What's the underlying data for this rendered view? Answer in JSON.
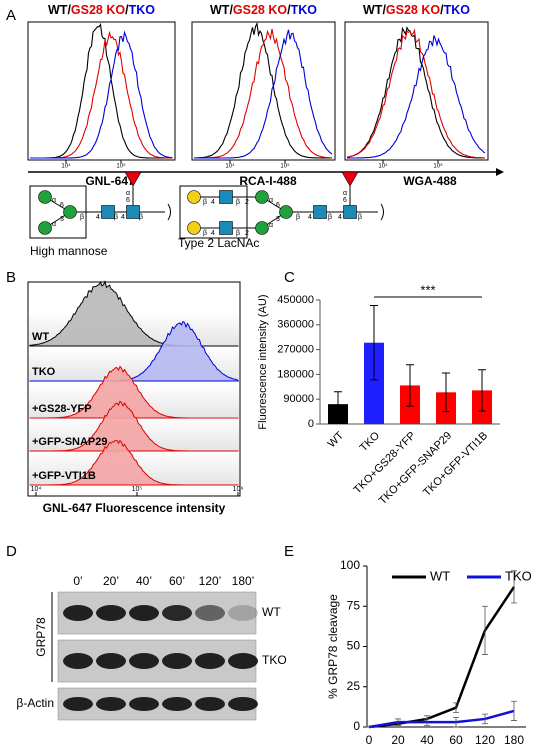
{
  "panel_labels": [
    "A",
    "B",
    "C",
    "D",
    "E"
  ],
  "panel_a": {
    "histograms": [
      {
        "title": [
          {
            "text": "WT",
            "color": "#000000"
          },
          {
            "text": "/",
            "color": "#000000"
          },
          {
            "text": "GS28 KO",
            "color": "#e00000"
          },
          {
            "text": "/",
            "color": "#000000"
          },
          {
            "text": "TKO",
            "color": "#0000dd"
          }
        ],
        "xlabel": "GNL-647",
        "xticks": [
          "10⁴",
          "10⁵"
        ]
      },
      {
        "title": [
          {
            "text": "WT",
            "color": "#000000"
          },
          {
            "text": "/",
            "color": "#000000"
          },
          {
            "text": "GS28 KO",
            "color": "#e00000"
          },
          {
            "text": "/",
            "color": "#000000"
          },
          {
            "text": "TKO",
            "color": "#0000dd"
          }
        ],
        "xlabel": "RCA-I-488",
        "xticks": [
          "10⁴",
          "10⁵"
        ]
      },
      {
        "title": [
          {
            "text": "WT",
            "color": "#000000"
          },
          {
            "text": "/",
            "color": "#000000"
          },
          {
            "text": "GS28 KO",
            "color": "#e00000"
          },
          {
            "text": "/",
            "color": "#000000"
          },
          {
            "text": "TKO",
            "color": "#0000dd"
          }
        ],
        "xlabel": "WGA-488",
        "xticks": [
          "10⁴",
          "10⁵"
        ]
      }
    ],
    "glycans": [
      {
        "name": "High mannose",
        "linkages": [
          "α",
          "6",
          "α",
          "3",
          "β",
          "4",
          "β",
          "4",
          "β",
          "α",
          "6"
        ]
      },
      {
        "name": "Type 2 LacNAc",
        "linkages": [
          "β",
          "4",
          "β",
          "4",
          "β",
          "2",
          "β",
          "2",
          "α",
          "6",
          "α",
          "3",
          "β",
          "4",
          "β",
          "4",
          "β",
          "α",
          "6"
        ]
      }
    ]
  },
  "panel_b": {
    "samples": [
      {
        "name": "WT",
        "color": "#000000",
        "fill": "#b8b8b8"
      },
      {
        "name": "TKO",
        "color": "#0000dd",
        "fill": "#b4b8f0"
      },
      {
        "name": "+GS28-YFP",
        "color": "#dd0000",
        "fill": "#f3a3a3"
      },
      {
        "name": "+GFP-SNAP29",
        "color": "#dd0000",
        "fill": "#f3a3a3"
      },
      {
        "name": "+GFP-VTI1B",
        "color": "#dd0000",
        "fill": "#f3a3a3"
      }
    ],
    "xticks": [
      "10⁴",
      "10⁵",
      "10⁶"
    ],
    "xlabel": "GNL-647 Fluorescence intensity"
  },
  "panel_d": {
    "timepoints": [
      "0’",
      "20’",
      "40’",
      "60’",
      "120’",
      "180’"
    ],
    "rows": [
      "WT",
      "TKO"
    ],
    "group_label": "GRP78",
    "loading": "β-Actin"
  },
  "chart_data": [
    {
      "type": "bar",
      "ylabel": "Fluorescence intensity (AU)",
      "categories": [
        "WT",
        "TKO",
        "TKO+GS28-YFP",
        "TKO+GFP-SNAP29",
        "TKO+GFP-VTI1B"
      ],
      "values": [
        72000,
        295000,
        140000,
        115000,
        122000
      ],
      "errors": [
        45000,
        135000,
        75000,
        70000,
        75000
      ],
      "colors": [
        "#000000",
        "#1f1fff",
        "#ff0000",
        "#ff0000",
        "#ff0000"
      ],
      "ylim": [
        0,
        450000
      ],
      "yticks": [
        0,
        90000,
        180000,
        270000,
        360000,
        450000
      ],
      "annotation": "***"
    },
    {
      "type": "line",
      "ylabel": "% GRP78 cleavage",
      "categories": [
        "0",
        "20",
        "40",
        "60",
        "120",
        "180"
      ],
      "series": [
        {
          "name": "WT",
          "color": "#000000",
          "values": [
            0,
            2,
            5,
            12,
            60,
            87
          ],
          "errors": [
            0,
            1,
            2,
            3,
            15,
            10
          ]
        },
        {
          "name": "TKO",
          "color": "#1010dd",
          "values": [
            0,
            3,
            3,
            3,
            5,
            10
          ],
          "errors": [
            0,
            2,
            2,
            3,
            3,
            6
          ]
        }
      ],
      "ylim": [
        0,
        100
      ],
      "yticks": [
        0,
        25,
        50,
        75,
        100
      ],
      "legend": "top"
    }
  ]
}
